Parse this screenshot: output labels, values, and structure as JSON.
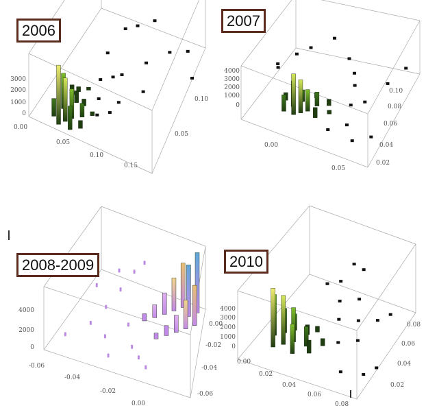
{
  "colors": {
    "box_lines": "#aaaaaa",
    "label_border": "#5b2b1e",
    "scatter_dots": "#111111",
    "purple_dots": "#b98ae0",
    "bar_gradient_green": [
      "#1f3d10",
      "#3f7a1c",
      "#7fbf2a",
      "#d6e85a",
      "#f0ee70"
    ],
    "bar_gradient_purple": [
      "#c28ae8",
      "#e0b0f0",
      "#f2d58a",
      "#e8c070",
      "#5fa8d8"
    ]
  },
  "chart_data": [
    {
      "type": "3d-bar-scatter",
      "label": "2006",
      "zticks": [
        "3000",
        "2000",
        "1000",
        "0"
      ],
      "xticks": [
        "0.00",
        "0.05",
        "0.10",
        "0.15"
      ],
      "yticks": [
        "0.10",
        "0.05"
      ],
      "bars": [
        {
          "x": 0.035,
          "y": 0.005,
          "h": 3000
        },
        {
          "x": 0.04,
          "y": 0.01,
          "h": 2200
        },
        {
          "x": 0.03,
          "y": 0.02,
          "h": 1800
        },
        {
          "x": 0.045,
          "y": 0.015,
          "h": 1500
        },
        {
          "x": 0.05,
          "y": 0.005,
          "h": 1200
        },
        {
          "x": 0.025,
          "y": 0.01,
          "h": 900
        },
        {
          "x": 0.055,
          "y": 0.02,
          "h": 700
        },
        {
          "x": 0.04,
          "y": 0.03,
          "h": 600
        },
        {
          "x": 0.03,
          "y": 0.035,
          "h": 500
        },
        {
          "x": 0.06,
          "y": 0.01,
          "h": 400
        },
        {
          "x": 0.05,
          "y": 0.03,
          "h": 350
        },
        {
          "x": 0.035,
          "y": 0.04,
          "h": 250
        },
        {
          "x": 0.065,
          "y": 0.025,
          "h": 200
        },
        {
          "x": 0.045,
          "y": 0.045,
          "h": 150
        }
      ],
      "points": [
        {
          "x": 0.07,
          "y": 0.08,
          "z": 1800
        },
        {
          "x": 0.08,
          "y": 0.09,
          "z": 1600
        },
        {
          "x": 0.09,
          "y": 0.11,
          "z": 1000
        },
        {
          "x": 0.06,
          "y": 0.06,
          "z": 1400
        },
        {
          "x": 0.065,
          "y": 0.04,
          "z": 1100
        },
        {
          "x": 0.075,
          "y": 0.05,
          "z": 900
        },
        {
          "x": 0.07,
          "y": 0.03,
          "z": 700
        },
        {
          "x": 0.08,
          "y": 0.06,
          "z": 600
        },
        {
          "x": 0.1,
          "y": 0.08,
          "z": 500
        },
        {
          "x": 0.12,
          "y": 0.1,
          "z": 300
        },
        {
          "x": 0.14,
          "y": 0.11,
          "z": 100
        },
        {
          "x": 0.16,
          "y": 0.09,
          "z": 60
        },
        {
          "x": 0.11,
          "y": 0.06,
          "z": 200
        },
        {
          "x": 0.09,
          "y": 0.04,
          "z": 350
        },
        {
          "x": 0.075,
          "y": 0.02,
          "z": 450
        },
        {
          "x": 0.085,
          "y": 0.03,
          "z": 250
        }
      ]
    },
    {
      "type": "3d-bar-scatter",
      "label": "2007",
      "zticks": [
        "4000",
        "3000",
        "2000",
        "1000",
        "0"
      ],
      "xticks": [
        "0.00",
        "0.05"
      ],
      "yticks": [
        "0.10",
        "0.08",
        "0.06",
        "0.04",
        "0.02"
      ],
      "bars": [
        {
          "x": 0.02,
          "y": 0.03,
          "h": 3200
        },
        {
          "x": 0.025,
          "y": 0.035,
          "h": 2600
        },
        {
          "x": 0.015,
          "y": 0.04,
          "h": 2000
        },
        {
          "x": 0.03,
          "y": 0.04,
          "h": 1700
        },
        {
          "x": 0.01,
          "y": 0.03,
          "h": 1300
        },
        {
          "x": 0.035,
          "y": 0.05,
          "h": 1100
        },
        {
          "x": 0.02,
          "y": 0.05,
          "h": 900
        },
        {
          "x": 0.04,
          "y": 0.035,
          "h": 800
        },
        {
          "x": 0.005,
          "y": 0.045,
          "h": 600
        },
        {
          "x": 0.045,
          "y": 0.055,
          "h": 500
        },
        {
          "x": 0.03,
          "y": 0.06,
          "h": 400
        },
        {
          "x": 0.05,
          "y": 0.045,
          "h": 300
        }
      ],
      "points": [
        {
          "x": -0.01,
          "y": 0.06,
          "z": 1500
        },
        {
          "x": -0.015,
          "y": 0.07,
          "z": 1200
        },
        {
          "x": 0.0,
          "y": 0.08,
          "z": 1800
        },
        {
          "x": 0.01,
          "y": 0.09,
          "z": 2000
        },
        {
          "x": 0.03,
          "y": 0.1,
          "z": 2600
        },
        {
          "x": 0.05,
          "y": 0.09,
          "z": 1900
        },
        {
          "x": 0.06,
          "y": 0.08,
          "z": 1500
        },
        {
          "x": 0.065,
          "y": 0.07,
          "z": 1200
        },
        {
          "x": 0.07,
          "y": 0.05,
          "z": 900
        },
        {
          "x": 0.075,
          "y": 0.03,
          "z": 600
        },
        {
          "x": 0.06,
          "y": 0.02,
          "z": 400
        },
        {
          "x": 0.08,
          "y": 0.06,
          "z": 800
        },
        {
          "x": 0.09,
          "y": 0.09,
          "z": 700
        },
        {
          "x": 0.1,
          "y": 0.11,
          "z": 900
        },
        {
          "x": 0.085,
          "y": 0.02,
          "z": 200
        },
        {
          "x": 0.1,
          "y": 0.03,
          "z": 300
        }
      ]
    },
    {
      "type": "3d-bar-scatter",
      "label": "2008-2009",
      "zticks": [
        "4000",
        "2000",
        "0"
      ],
      "xticks": [
        "-0.06",
        "-0.04",
        "-0.02",
        "0.00"
      ],
      "yticks": [
        "0.00",
        "-0.02",
        "-0.04",
        "-0.06"
      ],
      "bars": [
        {
          "x": 0.0,
          "y": 0.0,
          "h": 4200
        },
        {
          "x": -0.005,
          "y": -0.005,
          "h": 3600
        },
        {
          "x": -0.01,
          "y": 0.0,
          "h": 3100
        },
        {
          "x": 0.0,
          "y": -0.01,
          "h": 2800
        },
        {
          "x": -0.015,
          "y": -0.005,
          "h": 2300
        },
        {
          "x": -0.005,
          "y": -0.015,
          "h": 2000
        },
        {
          "x": -0.02,
          "y": -0.01,
          "h": 1500
        },
        {
          "x": -0.01,
          "y": -0.02,
          "h": 1200
        },
        {
          "x": -0.025,
          "y": -0.015,
          "h": 900
        },
        {
          "x": -0.015,
          "y": -0.025,
          "h": 700
        },
        {
          "x": -0.03,
          "y": -0.02,
          "h": 500
        },
        {
          "x": -0.02,
          "y": -0.03,
          "h": 400
        }
      ],
      "points": [
        {
          "x": -0.04,
          "y": -0.01,
          "z": 2200
        },
        {
          "x": -0.045,
          "y": -0.02,
          "z": 1600
        },
        {
          "x": -0.05,
          "y": -0.03,
          "z": 1000
        },
        {
          "x": -0.055,
          "y": -0.04,
          "z": 500
        },
        {
          "x": -0.035,
          "y": -0.035,
          "z": 800
        },
        {
          "x": -0.03,
          "y": -0.045,
          "z": 300
        },
        {
          "x": -0.025,
          "y": -0.05,
          "z": 200
        },
        {
          "x": -0.06,
          "y": -0.02,
          "z": 1300
        },
        {
          "x": -0.065,
          "y": -0.05,
          "z": 100
        },
        {
          "x": -0.04,
          "y": -0.055,
          "z": 100
        },
        {
          "x": -0.02,
          "y": -0.055,
          "z": 150
        },
        {
          "x": -0.035,
          "y": -0.005,
          "z": 2600
        },
        {
          "x": -0.05,
          "y": -0.01,
          "z": 1900
        },
        {
          "x": -0.045,
          "y": -0.045,
          "z": 400
        }
      ]
    },
    {
      "type": "3d-bar-scatter",
      "label": "2010",
      "zticks": [
        "4000",
        "3000",
        "2000",
        "1000",
        "0"
      ],
      "xticks": [
        "0.00",
        "0.02",
        "0.04",
        "0.06",
        "0.08"
      ],
      "yticks": [
        "0.08",
        "0.06",
        "0.04",
        "0.02"
      ],
      "bars": [
        {
          "x": 0.015,
          "y": 0.02,
          "h": 3600
        },
        {
          "x": 0.02,
          "y": 0.025,
          "h": 3000
        },
        {
          "x": 0.01,
          "y": 0.03,
          "h": 2500
        },
        {
          "x": 0.025,
          "y": 0.03,
          "h": 2100
        },
        {
          "x": 0.03,
          "y": 0.02,
          "h": 1800
        },
        {
          "x": 0.015,
          "y": 0.035,
          "h": 1500
        },
        {
          "x": 0.035,
          "y": 0.03,
          "h": 1200
        },
        {
          "x": 0.02,
          "y": 0.04,
          "h": 1000
        },
        {
          "x": 0.04,
          "y": 0.025,
          "h": 800
        },
        {
          "x": 0.03,
          "y": 0.04,
          "h": 600
        },
        {
          "x": 0.045,
          "y": 0.035,
          "h": 450
        },
        {
          "x": 0.035,
          "y": 0.045,
          "h": 350
        }
      ],
      "points": [
        {
          "x": 0.04,
          "y": 0.05,
          "z": 2800
        },
        {
          "x": 0.045,
          "y": 0.06,
          "z": 2500
        },
        {
          "x": 0.05,
          "y": 0.07,
          "z": 3100
        },
        {
          "x": 0.055,
          "y": 0.075,
          "z": 2600
        },
        {
          "x": 0.05,
          "y": 0.05,
          "z": 2000
        },
        {
          "x": 0.055,
          "y": 0.04,
          "z": 1600
        },
        {
          "x": 0.06,
          "y": 0.06,
          "z": 1800
        },
        {
          "x": 0.065,
          "y": 0.05,
          "z": 1200
        },
        {
          "x": 0.06,
          "y": 0.03,
          "z": 900
        },
        {
          "x": 0.07,
          "y": 0.04,
          "z": 700
        },
        {
          "x": 0.075,
          "y": 0.06,
          "z": 900
        },
        {
          "x": 0.08,
          "y": 0.07,
          "z": 800
        },
        {
          "x": 0.085,
          "y": 0.02,
          "z": 200
        },
        {
          "x": 0.07,
          "y": 0.015,
          "z": 250
        },
        {
          "x": 0.09,
          "y": 0.03,
          "z": 150
        }
      ]
    }
  ]
}
